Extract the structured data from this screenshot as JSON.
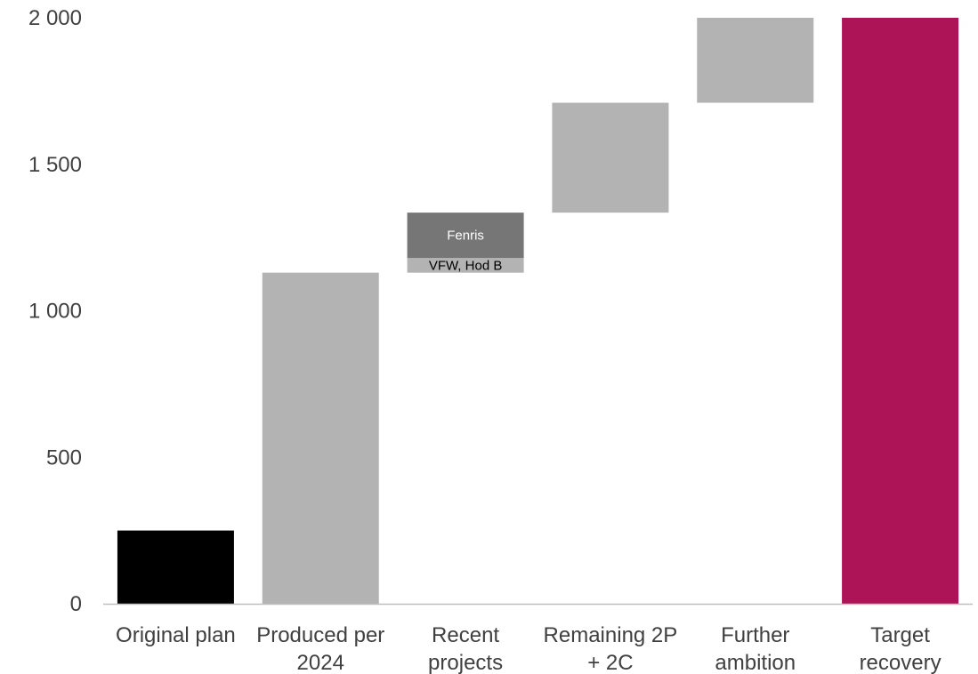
{
  "chart_data": {
    "type": "bar",
    "subtype": "waterfall",
    "title": "",
    "xlabel": "",
    "ylabel": "",
    "ylim": [
      0,
      2000
    ],
    "yticks": [
      0,
      500,
      1000,
      1500,
      2000
    ],
    "ytick_labels": [
      "0",
      "500",
      "1 000",
      "1 500",
      "2 000"
    ],
    "grid": false,
    "legend": "none",
    "categories": [
      [
        "Original plan"
      ],
      [
        "Produced per",
        "2024"
      ],
      [
        "Recent",
        "projects"
      ],
      [
        "Remaining 2P",
        "+ 2C"
      ],
      [
        "Further",
        "ambition"
      ],
      [
        "Target",
        "recovery"
      ]
    ],
    "bars": [
      {
        "segments": [
          {
            "base": 0,
            "value": 250,
            "color": "#000000"
          }
        ]
      },
      {
        "segments": [
          {
            "base": 0,
            "value": 1130,
            "color": "#b3b3b3"
          }
        ]
      },
      {
        "segments": [
          {
            "base": 1130,
            "value": 50,
            "color": "#b3b3b3",
            "label": "VFW, Hod B",
            "label_color": "#000000"
          },
          {
            "base": 1180,
            "value": 155,
            "color": "#767676",
            "label": "Fenris",
            "label_color": "#ffffff"
          }
        ]
      },
      {
        "segments": [
          {
            "base": 1335,
            "value": 375,
            "color": "#b3b3b3"
          }
        ]
      },
      {
        "segments": [
          {
            "base": 1710,
            "value": 290,
            "color": "#b3b3b3"
          }
        ]
      },
      {
        "segments": [
          {
            "base": 0,
            "value": 2000,
            "color": "#ad1457"
          }
        ]
      }
    ],
    "colors": {
      "axis": "#bfbfbf",
      "text": "#404040"
    }
  }
}
